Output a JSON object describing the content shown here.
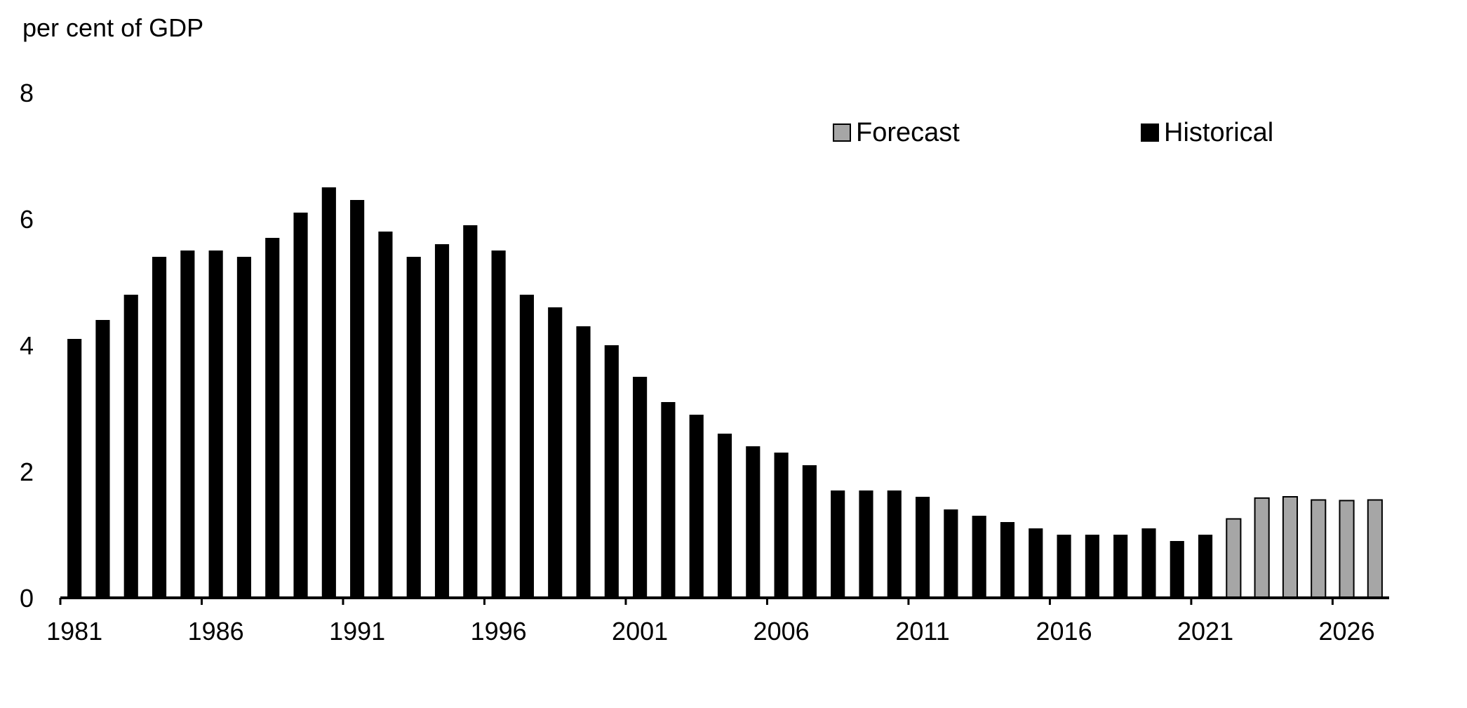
{
  "chart_data": {
    "type": "bar",
    "title": "",
    "ylabel": "per cent of GDP",
    "xlabel": "",
    "ylim": [
      0,
      8
    ],
    "yticks": [
      0,
      2,
      4,
      6,
      8
    ],
    "x_tick_labels": [
      "1981",
      "1986",
      "1991",
      "1996",
      "2001",
      "2006",
      "2011",
      "2016",
      "2021",
      "2026"
    ],
    "grid": false,
    "legend_position": "top-right",
    "categories": [
      1981,
      1982,
      1983,
      1984,
      1985,
      1986,
      1987,
      1988,
      1989,
      1990,
      1991,
      1992,
      1993,
      1994,
      1995,
      1996,
      1997,
      1998,
      1999,
      2000,
      2001,
      2002,
      2003,
      2004,
      2005,
      2006,
      2007,
      2008,
      2009,
      2010,
      2011,
      2012,
      2013,
      2014,
      2015,
      2016,
      2017,
      2018,
      2019,
      2020,
      2021,
      2022,
      2023,
      2024,
      2025,
      2026,
      2027
    ],
    "series": [
      {
        "name": "Historical",
        "color": "#000000",
        "x": [
          1981,
          1982,
          1983,
          1984,
          1985,
          1986,
          1987,
          1988,
          1989,
          1990,
          1991,
          1992,
          1993,
          1994,
          1995,
          1996,
          1997,
          1998,
          1999,
          2000,
          2001,
          2002,
          2003,
          2004,
          2005,
          2006,
          2007,
          2008,
          2009,
          2010,
          2011,
          2012,
          2013,
          2014,
          2015,
          2016,
          2017,
          2018,
          2019,
          2020,
          2021
        ],
        "values": [
          4.1,
          4.4,
          4.8,
          5.4,
          5.5,
          5.5,
          5.4,
          5.7,
          6.1,
          6.5,
          6.3,
          5.8,
          5.4,
          5.6,
          5.9,
          5.5,
          4.8,
          4.6,
          4.3,
          4.0,
          3.5,
          3.1,
          2.9,
          2.6,
          2.4,
          2.3,
          2.1,
          1.7,
          1.7,
          1.7,
          1.6,
          1.4,
          1.3,
          1.2,
          1.1,
          1.0,
          1.0,
          1.0,
          1.1,
          0.9,
          1.0
        ]
      },
      {
        "name": "Forecast",
        "color": "#a6a6a6",
        "x": [
          2022,
          2023,
          2024,
          2025,
          2026,
          2027
        ],
        "values": [
          1.25,
          1.58,
          1.6,
          1.55,
          1.54,
          1.55
        ]
      }
    ]
  }
}
